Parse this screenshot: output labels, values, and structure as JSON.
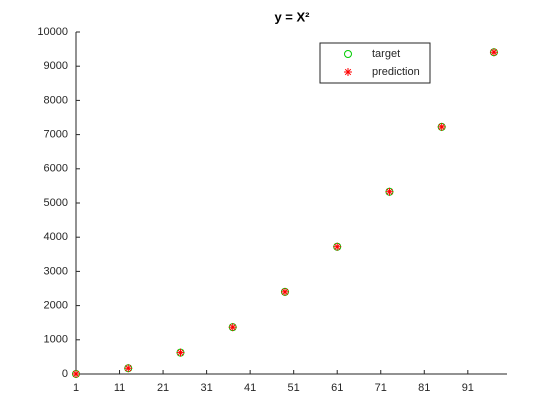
{
  "chart_data": {
    "type": "scatter",
    "title": "y = X²",
    "series": [
      {
        "name": "target",
        "color": "#00cc00",
        "marker": "circle",
        "x": [
          1,
          13,
          25,
          37,
          49,
          61,
          73,
          85,
          97
        ],
        "values": [
          1,
          169,
          625,
          1369,
          2401,
          3721,
          5329,
          7225,
          9409
        ]
      },
      {
        "name": "prediction",
        "color": "#ff0000",
        "marker": "asterisk",
        "x": [
          1,
          13,
          25,
          37,
          49,
          61,
          73,
          85,
          97
        ],
        "values": [
          1,
          169,
          625,
          1369,
          2401,
          3721,
          5329,
          7225,
          9409
        ]
      }
    ],
    "xlim": [
      1,
      100
    ],
    "xticks": [
      1,
      11,
      21,
      31,
      41,
      51,
      61,
      71,
      81,
      91
    ],
    "ylim": [
      0,
      10000
    ],
    "yticks": [
      0,
      1000,
      2000,
      3000,
      4000,
      5000,
      6000,
      7000,
      8000,
      9000,
      10000
    ],
    "grid": false,
    "legend": "northeast"
  }
}
